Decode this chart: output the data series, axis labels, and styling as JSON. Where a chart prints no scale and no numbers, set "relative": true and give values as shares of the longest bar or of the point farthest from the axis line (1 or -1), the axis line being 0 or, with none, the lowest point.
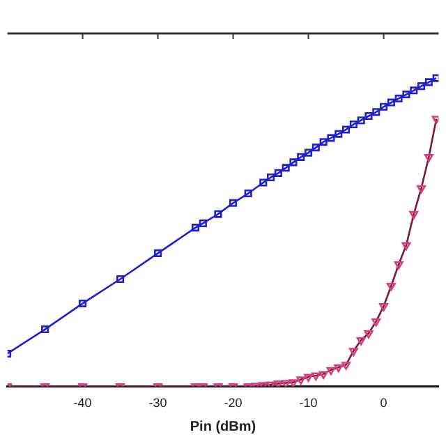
{
  "chart_data": {
    "type": "line",
    "xlabel": "Pin (dBm)",
    "relative": true,
    "grid": false,
    "legend": false,
    "line_style": "solid",
    "xlim": [
      -50,
      7.3
    ],
    "xticks": [
      -40,
      -30,
      -20,
      -10,
      0
    ],
    "series": [
      {
        "color": "#1f1fd0",
        "marker": "square",
        "x": [
          -50,
          -45,
          -40,
          -35,
          -30,
          -25,
          -24,
          -22,
          -20,
          -18,
          -16,
          -15,
          -14,
          -13,
          -12,
          -11,
          -10,
          -9,
          -8,
          -7,
          -6,
          -5,
          -4,
          -3,
          -2,
          -1,
          0,
          1,
          2,
          3,
          4,
          5,
          6,
          7
        ],
        "values": [
          0.106,
          0.185,
          0.269,
          0.348,
          0.432,
          0.515,
          0.529,
          0.559,
          0.595,
          0.626,
          0.661,
          0.678,
          0.692,
          0.709,
          0.727,
          0.744,
          0.758,
          0.775,
          0.793,
          0.806,
          0.819,
          0.833,
          0.85,
          0.863,
          0.877,
          0.89,
          0.907,
          0.921,
          0.934,
          0.947,
          0.96,
          0.974,
          0.987,
          1
        ]
      },
      {
        "color": "#7a1a3a",
        "marker": "triangle",
        "x": [
          -50,
          -45,
          -40,
          -35,
          -30,
          -25,
          -24,
          -22,
          -20,
          -18,
          -17,
          -16,
          -15,
          -14,
          -13,
          -12,
          -11,
          -10,
          -9,
          -8,
          -7,
          -6,
          -5,
          -4,
          -3,
          -2,
          -1,
          0,
          1,
          2,
          3,
          4,
          5,
          6,
          7
        ],
        "values": [
          0,
          0,
          0,
          0,
          0,
          0,
          0,
          0,
          0,
          0,
          0.002,
          0.004,
          0.006,
          0.009,
          0.011,
          0.013,
          0.022,
          0.031,
          0.035,
          0.04,
          0.053,
          0.062,
          0.07,
          0.115,
          0.15,
          0.172,
          0.211,
          0.26,
          0.326,
          0.396,
          0.458,
          0.559,
          0.643,
          0.744,
          0.868
        ]
      }
    ]
  }
}
